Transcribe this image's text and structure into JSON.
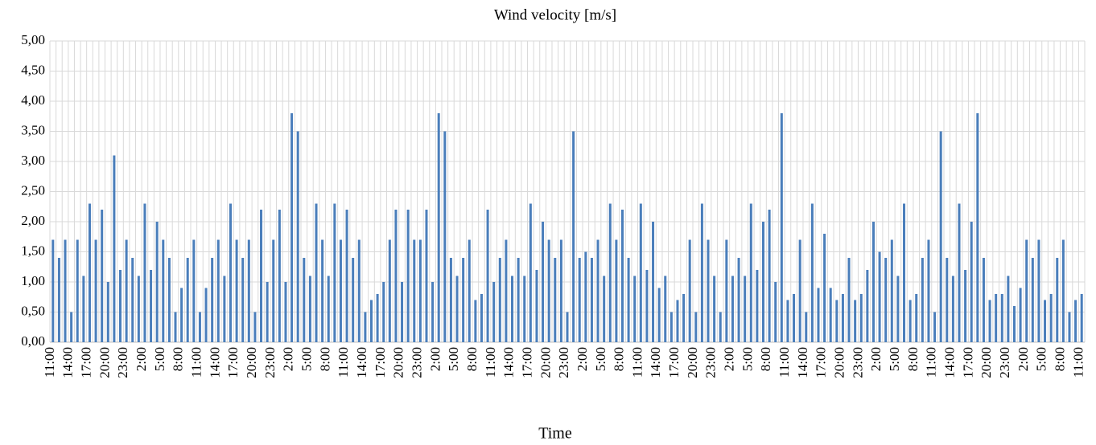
{
  "chart_data": {
    "type": "bar",
    "title": "Wind velocity [m/s]",
    "x_label": "Time",
    "categories": [
      "11:00",
      null,
      null,
      "14:00",
      null,
      null,
      "17:00",
      null,
      null,
      "20:00",
      null,
      null,
      "23:00",
      null,
      null,
      "2:00",
      null,
      null,
      "5:00",
      null,
      null,
      "8:00",
      null,
      null,
      "11:00",
      null,
      null,
      "14:00",
      null,
      null,
      "17:00",
      null,
      null,
      "20:00",
      null,
      null,
      "23:00",
      null,
      null,
      "2:00",
      null,
      null,
      "5:00",
      null,
      null,
      "8:00",
      null,
      null,
      "11:00",
      null,
      null,
      "14:00",
      null,
      null,
      "17:00",
      null,
      null,
      "20:00",
      null,
      null,
      "23:00",
      null,
      null,
      "2:00",
      null,
      null,
      "5:00",
      null,
      null,
      "8:00",
      null,
      null,
      "11:00",
      null,
      null,
      "14:00",
      null,
      null,
      "17:00",
      null,
      null,
      "20:00",
      null,
      null,
      "23:00",
      null,
      null,
      "2:00",
      null,
      null,
      "5:00",
      null,
      null,
      "8:00",
      null,
      null,
      "11:00",
      null,
      null,
      "14:00",
      null,
      null,
      "17:00",
      null,
      null,
      "20:00",
      null,
      null,
      "23:00",
      null,
      null,
      "2:00",
      null,
      null,
      "5:00",
      null,
      null,
      "8:00",
      null,
      null,
      "11:00",
      null,
      null,
      "14:00",
      null,
      null,
      "17:00",
      null,
      null,
      "20:00",
      null,
      null,
      "23:00",
      null,
      null,
      "2:00",
      null,
      null,
      "5:00",
      null,
      null,
      "8:00",
      null,
      null,
      "11:00",
      null,
      null,
      "14:00",
      null,
      null,
      "17:00",
      null,
      null,
      "20:00",
      null,
      null,
      "23:00",
      null,
      null,
      "2:00",
      null,
      null,
      "5:00",
      null,
      null,
      "8:00",
      null,
      null,
      "11:00"
    ],
    "values": [
      1.7,
      1.4,
      1.7,
      0.5,
      1.7,
      1.1,
      2.3,
      1.7,
      2.2,
      1.0,
      3.1,
      1.2,
      1.7,
      1.4,
      1.1,
      2.3,
      1.2,
      2.0,
      1.7,
      1.4,
      0.5,
      0.9,
      1.4,
      1.7,
      0.5,
      0.9,
      1.4,
      1.7,
      1.1,
      2.3,
      1.7,
      1.4,
      1.7,
      0.5,
      2.2,
      1.0,
      1.7,
      2.2,
      1.0,
      3.8,
      3.5,
      1.4,
      1.1,
      2.3,
      1.7,
      1.1,
      2.3,
      1.7,
      2.2,
      1.4,
      1.7,
      0.5,
      0.7,
      0.8,
      1.0,
      1.7,
      2.2,
      1.0,
      2.2,
      1.7,
      1.7,
      2.2,
      1.0,
      3.8,
      3.5,
      1.4,
      1.1,
      1.4,
      1.7,
      0.7,
      0.8,
      2.2,
      1.0,
      1.4,
      1.7,
      1.1,
      1.4,
      1.1,
      2.3,
      1.2,
      2.0,
      1.7,
      1.4,
      1.7,
      0.5,
      3.5,
      1.4,
      1.5,
      1.4,
      1.7,
      1.1,
      2.3,
      1.7,
      2.2,
      1.4,
      1.1,
      2.3,
      1.2,
      2.0,
      0.9,
      1.1,
      0.5,
      0.7,
      0.8,
      1.7,
      0.5,
      2.3,
      1.7,
      1.1,
      0.5,
      1.7,
      1.1,
      1.4,
      1.1,
      2.3,
      1.2,
      2.0,
      2.2,
      1.0,
      3.8,
      0.7,
      0.8,
      1.7,
      0.5,
      2.3,
      0.9,
      1.8,
      0.9,
      0.7,
      0.8,
      1.4,
      0.7,
      0.8,
      1.2,
      2.0,
      1.5,
      1.4,
      1.7,
      1.1,
      2.3,
      0.7,
      0.8,
      1.4,
      1.7,
      0.5,
      3.5,
      1.4,
      1.1,
      2.3,
      1.2,
      2.0,
      3.8,
      1.4,
      0.7,
      0.8,
      0.8,
      1.1,
      0.6,
      0.9,
      1.7,
      1.4,
      1.7,
      0.7,
      0.8,
      1.4,
      1.7,
      0.5,
      0.7,
      0.8
    ],
    "color": "#4a7ebb",
    "ylim": [
      0,
      5
    ],
    "yticks": [
      {
        "value": 0,
        "label": "0,00"
      },
      {
        "value": 0.5,
        "label": "0,50"
      },
      {
        "value": 1,
        "label": "1,00"
      },
      {
        "value": 1.5,
        "label": "1,50"
      },
      {
        "value": 2,
        "label": "2,00"
      },
      {
        "value": 2.5,
        "label": "2,50"
      },
      {
        "value": 3,
        "label": "3,00"
      },
      {
        "value": 3.5,
        "label": "3,50"
      },
      {
        "value": 4,
        "label": "4,00"
      },
      {
        "value": 4.5,
        "label": "4,50"
      },
      {
        "value": 5,
        "label": "5,00"
      }
    ],
    "grid": true
  }
}
